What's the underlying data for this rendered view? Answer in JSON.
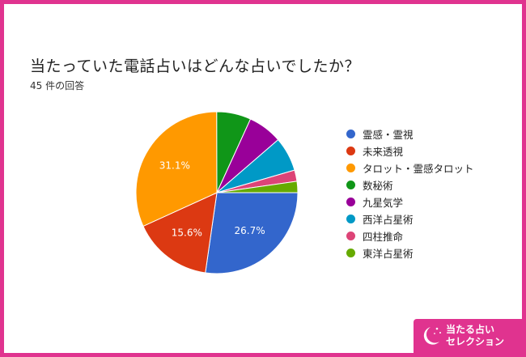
{
  "chart_data": {
    "type": "pie",
    "title": "当たっていた電話占いはどんな占いでしたか？",
    "subtitle": "45 件の回答",
    "categories": [
      "霊感・霊視",
      "未来透視",
      "タロット・霊感タロット",
      "数秘術",
      "九星気学",
      "西洋占星術",
      "四柱推命",
      "東洋占星術"
    ],
    "values": [
      26.7,
      15.6,
      31.1,
      6.7,
      6.7,
      6.7,
      2.2,
      2.2
    ],
    "value_labels": [
      "26.7%",
      "15.6%",
      "31.1%",
      "",
      "",
      "",
      "",
      ""
    ],
    "colors": [
      "#3366cc",
      "#dc3912",
      "#ff9900",
      "#109618",
      "#990099",
      "#0099c6",
      "#dd4477",
      "#66aa00"
    ],
    "legend_position": "right"
  },
  "badge": {
    "line1": "当たる占い",
    "line2": "セレクション",
    "icon": "crescent-moon-icon"
  },
  "frame_color": "#e0338f"
}
